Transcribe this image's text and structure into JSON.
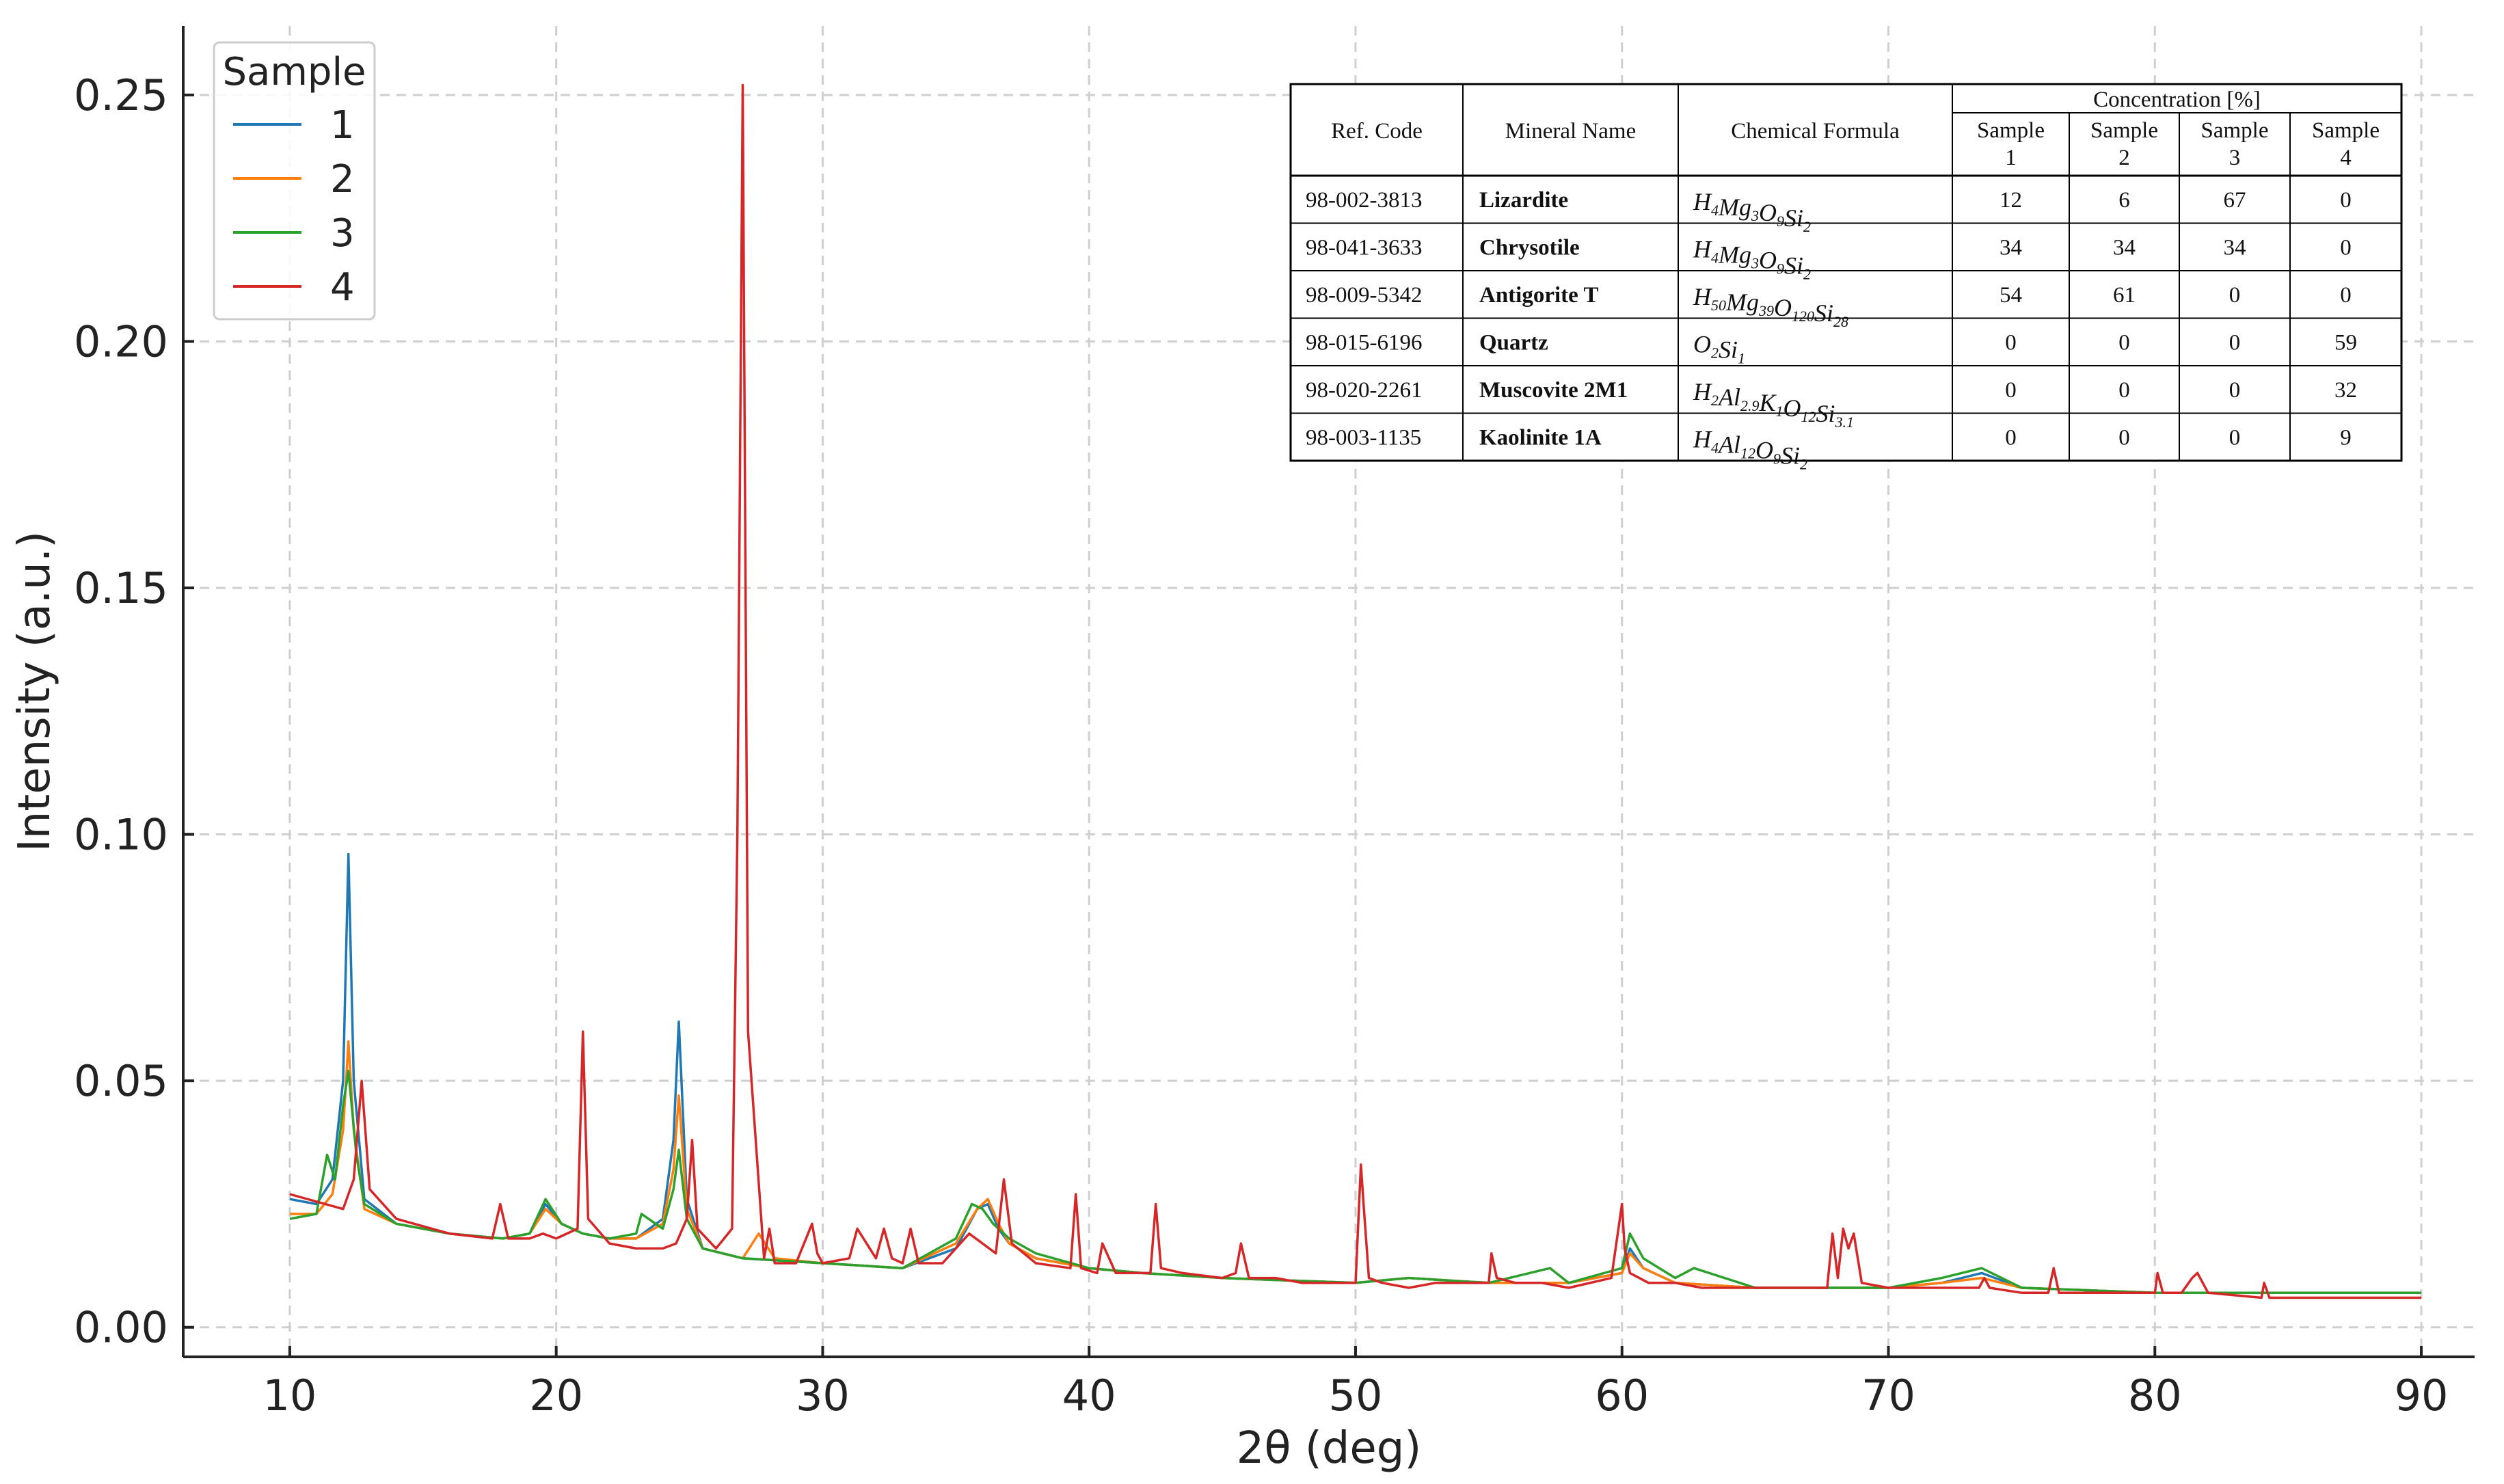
{
  "chart_data": {
    "type": "line",
    "xlabel": "2θ (deg)",
    "ylabel": "Intensity (a.u.)",
    "xlim": [
      6,
      92
    ],
    "ylim": [
      -0.006,
      0.264
    ],
    "xticks": [
      10,
      20,
      30,
      40,
      50,
      60,
      70,
      80,
      90
    ],
    "xtick_labels": [
      "10",
      "20",
      "30",
      "40",
      "50",
      "60",
      "70",
      "80",
      "90"
    ],
    "yticks": [
      0.0,
      0.05,
      0.1,
      0.15,
      0.2,
      0.25
    ],
    "ytick_labels": [
      "0.00",
      "0.05",
      "0.10",
      "0.15",
      "0.20",
      "0.25"
    ],
    "grid": true,
    "legend": {
      "title": "Sample",
      "placement": "top-left"
    },
    "series": [
      {
        "name": "1",
        "color": "#1f77b4",
        "x": [
          10,
          11,
          11.6,
          12,
          12.2,
          12.4,
          12.8,
          14,
          16,
          18,
          19,
          19.6,
          20.2,
          21,
          22,
          23,
          24,
          24.4,
          24.6,
          24.9,
          25.5,
          27,
          30,
          33,
          35,
          35.8,
          36.2,
          36.6,
          37,
          38,
          40,
          42,
          45,
          50,
          52,
          55,
          58,
          60,
          60.3,
          60.8,
          62,
          65,
          68,
          70,
          72,
          73.5,
          75,
          80,
          85,
          90
        ],
        "values": [
          0.026,
          0.025,
          0.03,
          0.05,
          0.096,
          0.05,
          0.026,
          0.021,
          0.019,
          0.018,
          0.019,
          0.025,
          0.021,
          0.019,
          0.018,
          0.018,
          0.022,
          0.038,
          0.062,
          0.026,
          0.016,
          0.014,
          0.013,
          0.012,
          0.016,
          0.024,
          0.025,
          0.02,
          0.017,
          0.014,
          0.012,
          0.011,
          0.01,
          0.009,
          0.01,
          0.009,
          0.009,
          0.011,
          0.016,
          0.012,
          0.009,
          0.008,
          0.008,
          0.008,
          0.009,
          0.011,
          0.008,
          0.007,
          0.007,
          0.007
        ]
      },
      {
        "name": "2",
        "color": "#ff7f0e",
        "x": [
          10,
          11,
          11.6,
          12,
          12.2,
          12.4,
          12.8,
          14,
          16,
          18,
          19,
          19.6,
          20.2,
          21,
          22,
          23,
          24,
          24.4,
          24.6,
          24.9,
          25.5,
          27,
          27.6,
          28.2,
          30,
          33,
          35,
          35.8,
          36.2,
          36.6,
          37,
          38,
          40,
          42,
          45,
          50,
          52,
          55,
          58,
          60,
          60.3,
          60.8,
          62,
          65,
          68,
          70,
          72,
          73.5,
          75,
          80,
          85,
          90
        ],
        "values": [
          0.023,
          0.023,
          0.027,
          0.04,
          0.058,
          0.04,
          0.024,
          0.021,
          0.019,
          0.018,
          0.019,
          0.024,
          0.021,
          0.019,
          0.018,
          0.018,
          0.021,
          0.032,
          0.047,
          0.024,
          0.016,
          0.014,
          0.019,
          0.014,
          0.013,
          0.012,
          0.017,
          0.024,
          0.026,
          0.021,
          0.017,
          0.014,
          0.012,
          0.011,
          0.01,
          0.009,
          0.01,
          0.009,
          0.009,
          0.011,
          0.015,
          0.012,
          0.009,
          0.008,
          0.008,
          0.008,
          0.009,
          0.01,
          0.008,
          0.007,
          0.007,
          0.007
        ]
      },
      {
        "name": "3",
        "color": "#2ca02c",
        "x": [
          10,
          11,
          11.4,
          11.7,
          12,
          12.2,
          12.5,
          12.8,
          14,
          16,
          18,
          19,
          19.6,
          20.2,
          21,
          22,
          23,
          23.2,
          24,
          24.4,
          24.6,
          24.9,
          25.5,
          27,
          30,
          33,
          35,
          35.6,
          36,
          36.4,
          37,
          38,
          40,
          42,
          45,
          50,
          52,
          55,
          57.3,
          58,
          60,
          60.3,
          60.8,
          62,
          62.7,
          65,
          68,
          70,
          72,
          73.5,
          75,
          80,
          85,
          90
        ],
        "values": [
          0.022,
          0.023,
          0.035,
          0.03,
          0.045,
          0.052,
          0.035,
          0.025,
          0.021,
          0.019,
          0.018,
          0.019,
          0.026,
          0.021,
          0.019,
          0.018,
          0.019,
          0.023,
          0.02,
          0.028,
          0.036,
          0.022,
          0.016,
          0.014,
          0.013,
          0.012,
          0.018,
          0.025,
          0.024,
          0.021,
          0.018,
          0.015,
          0.012,
          0.011,
          0.01,
          0.009,
          0.01,
          0.009,
          0.012,
          0.009,
          0.012,
          0.019,
          0.014,
          0.01,
          0.012,
          0.008,
          0.008,
          0.008,
          0.01,
          0.012,
          0.008,
          0.007,
          0.007,
          0.007
        ]
      },
      {
        "name": "4",
        "color": "#d62728",
        "x": [
          10,
          12,
          12.4,
          12.7,
          13,
          14,
          16,
          17.6,
          17.9,
          18.2,
          19,
          19.5,
          20,
          20.8,
          21,
          21.2,
          22,
          23,
          24,
          24.5,
          24.9,
          25.1,
          25.3,
          26,
          26.6,
          26.8,
          27,
          27.2,
          27.8,
          28,
          28.2,
          29,
          29.6,
          29.8,
          30,
          31,
          31.3,
          32,
          32.3,
          32.6,
          33,
          33.3,
          33.6,
          34.5,
          35.5,
          36.5,
          36.8,
          37.1,
          38,
          39.3,
          39.5,
          39.7,
          40.3,
          40.5,
          41,
          42.3,
          42.5,
          42.7,
          43.5,
          45,
          45.5,
          45.7,
          46,
          47,
          48,
          49,
          50,
          50.2,
          50.3,
          50.5,
          51,
          52,
          53,
          55,
          55.1,
          55.3,
          56,
          57,
          58,
          59.6,
          60,
          60.1,
          60.3,
          61,
          62,
          63,
          65,
          67.7,
          67.9,
          68.1,
          68.3,
          68.5,
          68.7,
          69,
          70,
          72,
          73.4,
          73.6,
          73.8,
          75,
          76,
          76.2,
          76.4,
          78,
          80,
          80.1,
          80.3,
          81,
          81.4,
          81.6,
          82,
          84,
          84.1,
          84.3,
          86,
          88,
          90
        ],
        "values": [
          0.027,
          0.024,
          0.03,
          0.05,
          0.028,
          0.022,
          0.019,
          0.018,
          0.025,
          0.018,
          0.018,
          0.019,
          0.018,
          0.02,
          0.06,
          0.022,
          0.017,
          0.016,
          0.016,
          0.017,
          0.022,
          0.038,
          0.02,
          0.016,
          0.02,
          0.1,
          0.252,
          0.06,
          0.014,
          0.02,
          0.013,
          0.013,
          0.021,
          0.015,
          0.013,
          0.014,
          0.02,
          0.014,
          0.02,
          0.014,
          0.013,
          0.02,
          0.013,
          0.013,
          0.019,
          0.015,
          0.03,
          0.017,
          0.013,
          0.012,
          0.027,
          0.012,
          0.011,
          0.017,
          0.011,
          0.011,
          0.025,
          0.012,
          0.011,
          0.01,
          0.011,
          0.017,
          0.01,
          0.01,
          0.009,
          0.009,
          0.009,
          0.033,
          0.025,
          0.01,
          0.009,
          0.008,
          0.009,
          0.009,
          0.015,
          0.01,
          0.009,
          0.009,
          0.008,
          0.01,
          0.025,
          0.016,
          0.011,
          0.009,
          0.009,
          0.008,
          0.008,
          0.008,
          0.019,
          0.01,
          0.02,
          0.016,
          0.019,
          0.009,
          0.008,
          0.008,
          0.008,
          0.01,
          0.008,
          0.007,
          0.007,
          0.012,
          0.007,
          0.007,
          0.007,
          0.011,
          0.007,
          0.007,
          0.01,
          0.011,
          0.007,
          0.006,
          0.009,
          0.006,
          0.006,
          0.006,
          0.006
        ]
      }
    ]
  },
  "table": {
    "headers": {
      "ref_code": "Ref. Code",
      "mineral_name": "Mineral Name",
      "chemical_formula": "Chemical Formula",
      "concentration": "Concentration [%]",
      "samples": [
        {
          "line1": "Sample",
          "line2": "1"
        },
        {
          "line1": "Sample",
          "line2": "2"
        },
        {
          "line1": "Sample",
          "line2": "3"
        },
        {
          "line1": "Sample",
          "line2": "4"
        }
      ]
    },
    "rows": [
      {
        "ref": "98-002-3813",
        "name": "Lizardite",
        "formula": [
          [
            "H",
            "4"
          ],
          [
            "Mg",
            "3"
          ],
          [
            "O",
            "9"
          ],
          [
            "Si",
            "2"
          ]
        ],
        "values": [
          "12",
          "6",
          "67",
          "0"
        ]
      },
      {
        "ref": "98-041-3633",
        "name": "Chrysotile",
        "formula": [
          [
            "H",
            "4"
          ],
          [
            "Mg",
            "3"
          ],
          [
            "O",
            "9"
          ],
          [
            "Si",
            "2"
          ]
        ],
        "values": [
          "34",
          "34",
          "34",
          "0"
        ]
      },
      {
        "ref": "98-009-5342",
        "name": "Antigorite T",
        "formula": [
          [
            "H",
            "50"
          ],
          [
            "Mg",
            "39"
          ],
          [
            "O",
            "120"
          ],
          [
            "Si",
            "28"
          ]
        ],
        "values": [
          "54",
          "61",
          "0",
          "0"
        ]
      },
      {
        "ref": "98-015-6196",
        "name": "Quartz",
        "formula": [
          [
            "O",
            "2"
          ],
          [
            "Si",
            "1"
          ]
        ],
        "values": [
          "0",
          "0",
          "0",
          "59"
        ]
      },
      {
        "ref": "98-020-2261",
        "name": "Muscovite 2M1",
        "formula": [
          [
            "H",
            "2"
          ],
          [
            "Al",
            "2.9"
          ],
          [
            "K",
            "1"
          ],
          [
            "O",
            "12"
          ],
          [
            "Si",
            "3.1"
          ]
        ],
        "values": [
          "0",
          "0",
          "0",
          "32"
        ]
      },
      {
        "ref": "98-003-1135",
        "name": "Kaolinite 1A",
        "formula": [
          [
            "H",
            "4"
          ],
          [
            "Al",
            "12"
          ],
          [
            "O",
            "9"
          ],
          [
            "Si",
            "2"
          ]
        ],
        "values": [
          "0",
          "0",
          "0",
          "9"
        ]
      }
    ]
  }
}
